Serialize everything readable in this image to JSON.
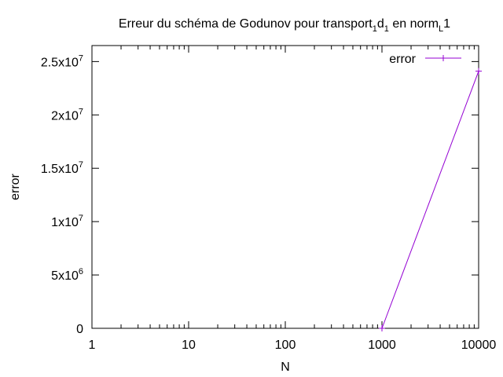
{
  "chart_data": {
    "type": "line",
    "title": {
      "base": "Erreur du schéma de Godunov pour transport",
      "sub1": "1",
      "mid": "d",
      "sub2": "1",
      "mid2": " en norm",
      "sub3": "L",
      "end": "1"
    },
    "xlabel": "N",
    "ylabel": "error",
    "x_scale": "log",
    "x_range": [
      1,
      10000
    ],
    "y_range": [
      0,
      26500000
    ],
    "x_ticks": [
      {
        "value": 1,
        "label": "1"
      },
      {
        "value": 10,
        "label": "10"
      },
      {
        "value": 100,
        "label": "100"
      },
      {
        "value": 1000,
        "label": "1000"
      },
      {
        "value": 10000,
        "label": "10000"
      }
    ],
    "y_ticks": [
      {
        "value": 0,
        "mant": "0",
        "exp": ""
      },
      {
        "value": 5000000,
        "mant": "5x10",
        "exp": "6"
      },
      {
        "value": 10000000,
        "mant": "1x10",
        "exp": "7"
      },
      {
        "value": 15000000,
        "mant": "1.5x10",
        "exp": "7"
      },
      {
        "value": 20000000,
        "mant": "2x10",
        "exp": "7"
      },
      {
        "value": 25000000,
        "mant": "2.5x10",
        "exp": "7"
      }
    ],
    "grid": false,
    "legend_position": "top-right",
    "series": [
      {
        "name": "error",
        "color": "#9400d3",
        "points": [
          {
            "x": 1000,
            "y": 0
          },
          {
            "x": 10000,
            "y": 24100000
          }
        ]
      }
    ]
  }
}
